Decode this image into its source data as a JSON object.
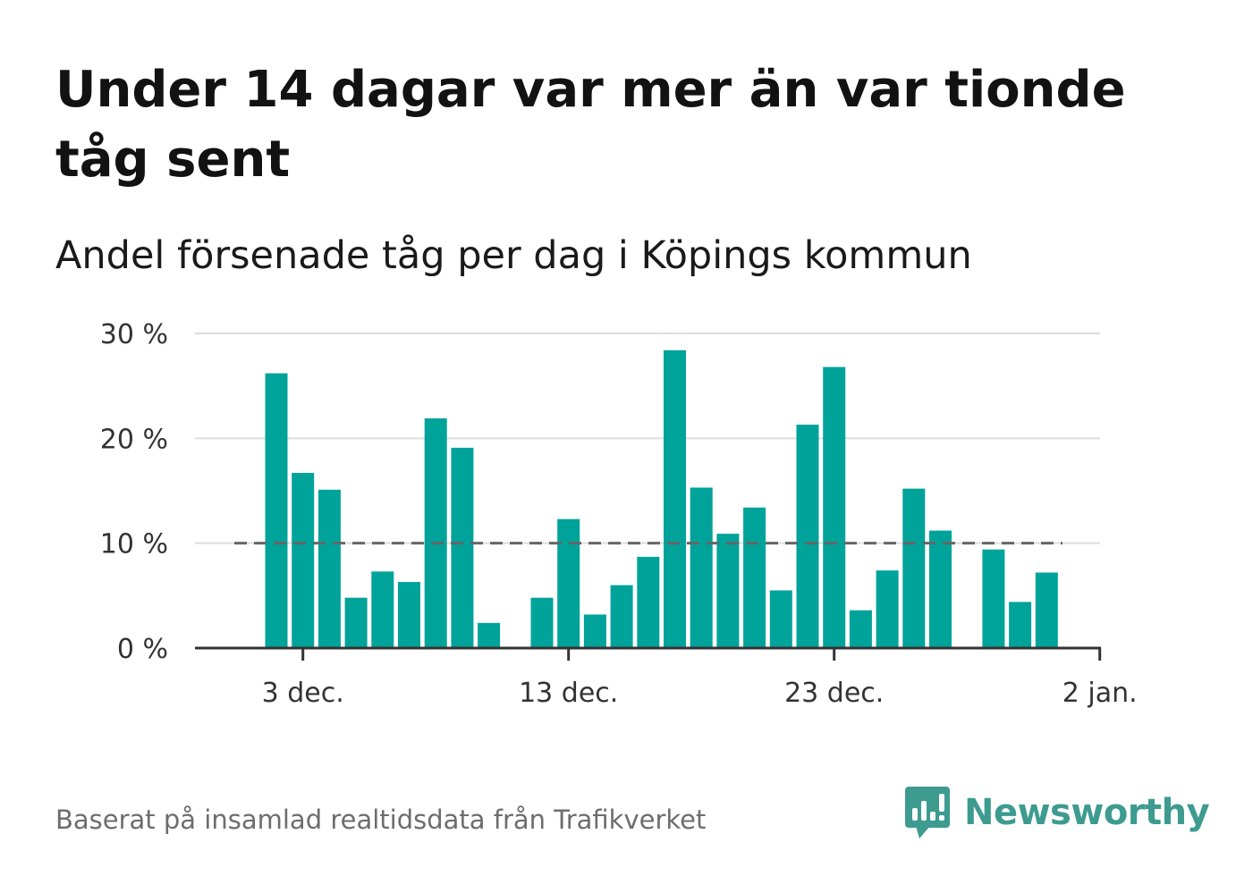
{
  "title": "Under 14 dagar var mer än var tionde tåg sent",
  "subtitle": "Andel försenade tåg per dag i Köpings kommun",
  "footer": {
    "source": "Baserat på insamlad realtidsdata från Trafikverket",
    "brand": "Newsworthy"
  },
  "colors": {
    "bar": "#00a39a",
    "reference_line": "#666666",
    "grid": "#dddddd",
    "axis": "#333333",
    "brand": "#3d9b90"
  },
  "icons": {
    "brand_logo": "bar-chart-speech-bubble-icon"
  },
  "chart_data": {
    "type": "bar",
    "x": [
      "2 dec.",
      "3 dec.",
      "4 dec.",
      "5 dec.",
      "6 dec.",
      "7 dec.",
      "8 dec.",
      "9 dec.",
      "10 dec.",
      "11 dec.",
      "12 dec.",
      "13 dec.",
      "14 dec.",
      "15 dec.",
      "16 dec.",
      "17 dec.",
      "18 dec.",
      "19 dec.",
      "20 dec.",
      "21 dec.",
      "22 dec.",
      "23 dec.",
      "24 dec.",
      "25 dec.",
      "26 dec.",
      "27 dec.",
      "28 dec.",
      "29 dec.",
      "30 dec.",
      "31 dec."
    ],
    "values": [
      26.2,
      16.7,
      15.1,
      4.8,
      7.3,
      6.3,
      21.9,
      19.1,
      2.4,
      null,
      4.8,
      12.3,
      3.2,
      6.0,
      8.7,
      28.4,
      15.3,
      10.9,
      13.4,
      5.5,
      21.3,
      26.8,
      3.6,
      7.4,
      15.2,
      11.2,
      null,
      9.4,
      4.4,
      7.2
    ],
    "xticks": [
      "3 dec.",
      "13 dec.",
      "23 dec.",
      "2 jan."
    ],
    "yticks": [
      0,
      10,
      20,
      30
    ],
    "ytick_labels": [
      "0 %",
      "10 %",
      "20 %",
      "30 %"
    ],
    "ylim": [
      0,
      30
    ],
    "reference_line": {
      "y": 10,
      "style": "dashed"
    },
    "grid": true
  }
}
